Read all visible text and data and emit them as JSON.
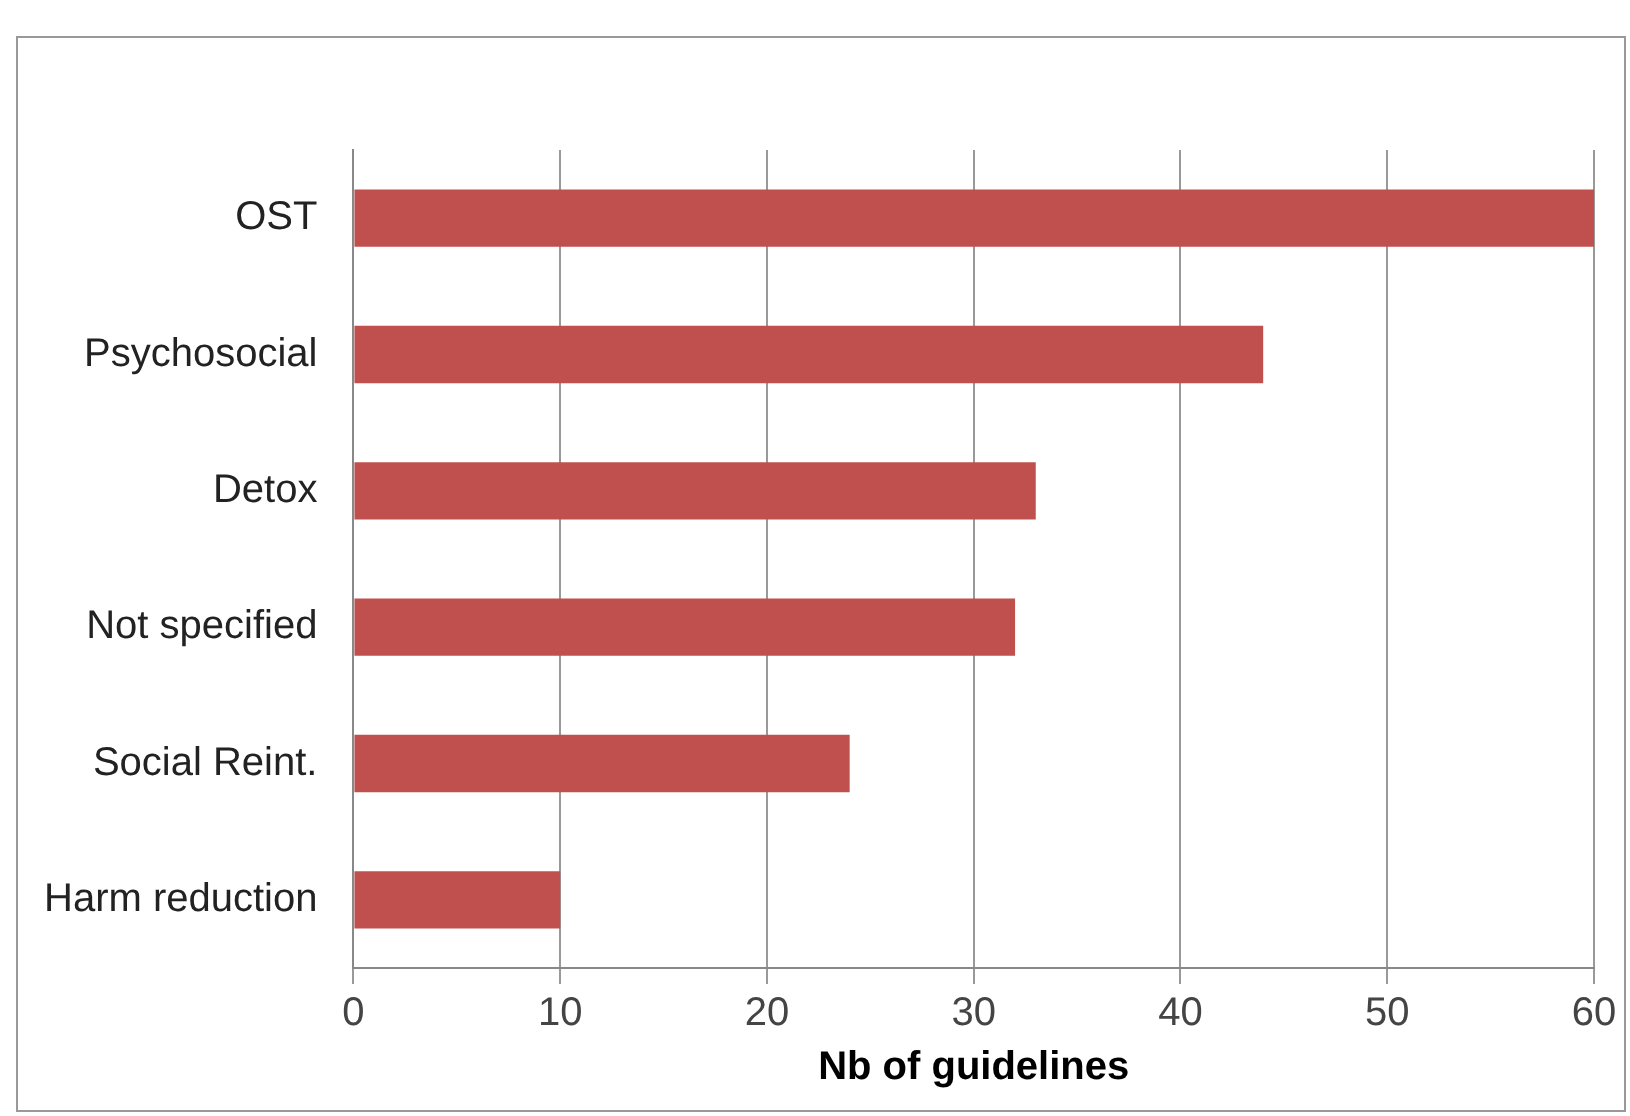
{
  "chart_data": {
    "type": "bar",
    "orientation": "horizontal",
    "xlabel": "Nb of guidelines",
    "categories": [
      "OST",
      "Psychosocial",
      "Detox",
      "Not specified",
      "Social Reint.",
      "Harm reduction"
    ],
    "values": [
      60,
      44,
      33,
      32,
      24,
      10
    ],
    "color": "#c0504d",
    "xlim": [
      0,
      60
    ],
    "xticks": [
      0,
      10,
      20,
      30,
      40,
      50,
      60
    ],
    "grid": "x",
    "legend": false
  }
}
